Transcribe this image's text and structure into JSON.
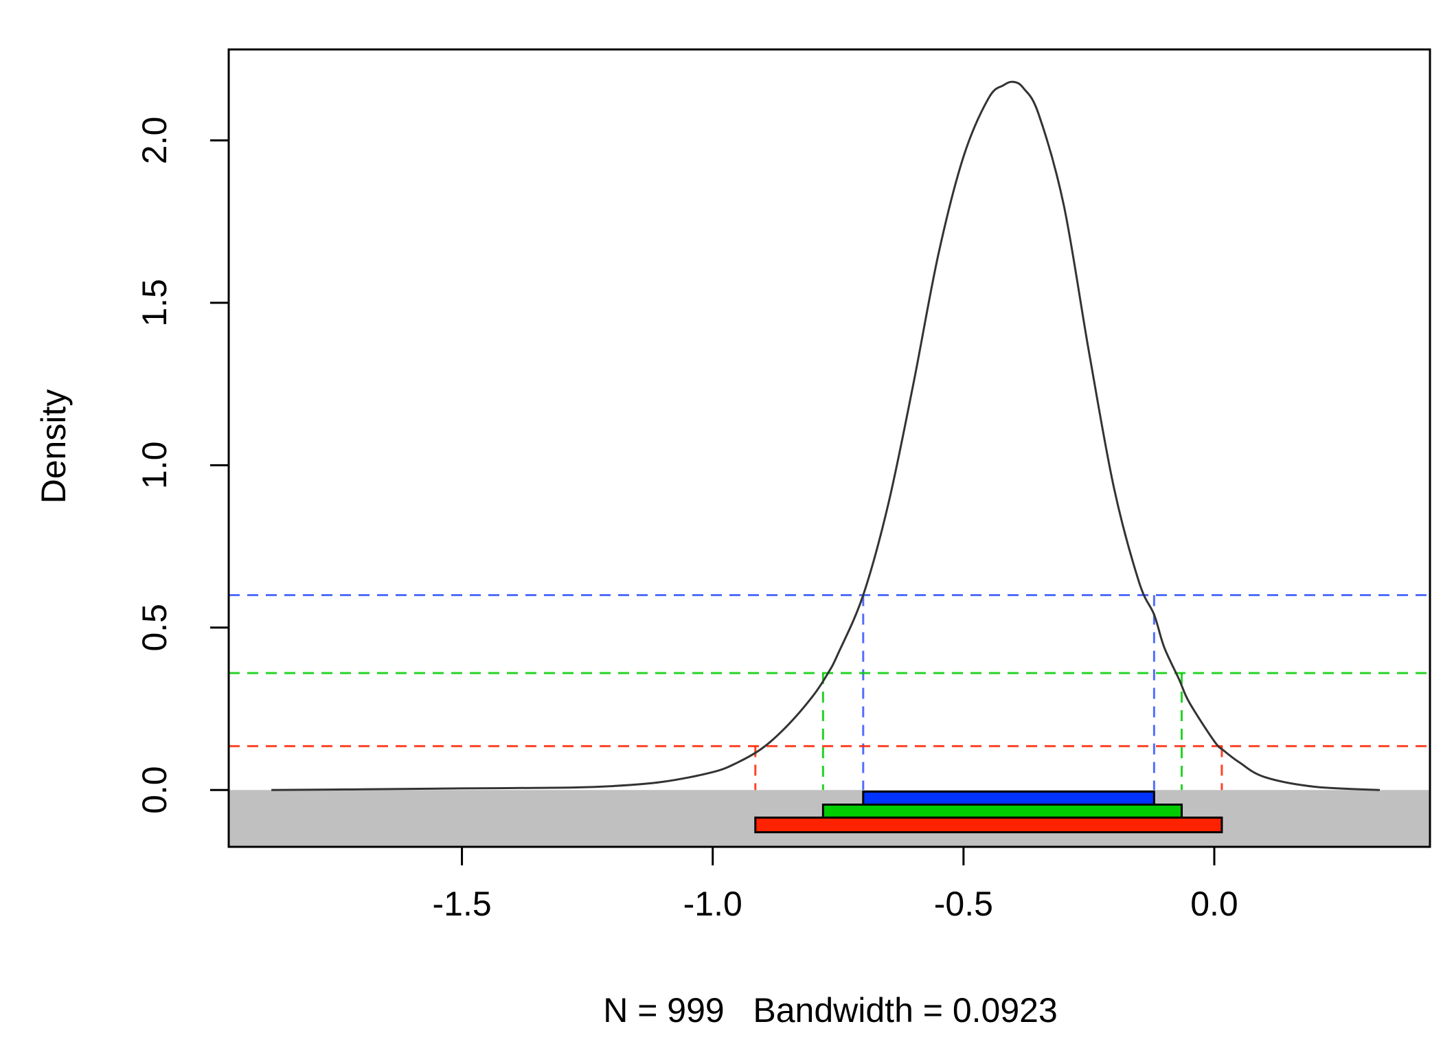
{
  "chart_data": {
    "type": "line",
    "title": "",
    "xlabel": "N = 999   Bandwidth = 0.0923",
    "ylabel": "Density",
    "xlim": [
      -1.965,
      0.43
    ],
    "ylim": [
      -0.175,
      2.28
    ],
    "x_ticks": [
      {
        "value": -1.5,
        "label": "-1.5"
      },
      {
        "value": -1.0,
        "label": "-1.0"
      },
      {
        "value": -0.5,
        "label": "-0.5"
      },
      {
        "value": 0.0,
        "label": "0.0"
      }
    ],
    "y_ticks": [
      {
        "value": 0.0,
        "label": "0.0"
      },
      {
        "value": 0.5,
        "label": "0.5"
      },
      {
        "value": 1.0,
        "label": "1.0"
      },
      {
        "value": 1.5,
        "label": "1.5"
      },
      {
        "value": 2.0,
        "label": "2.0"
      }
    ],
    "grid": false,
    "density_curve": {
      "name": "density",
      "color": "#333333",
      "x": [
        -1.88,
        -1.7,
        -1.5,
        -1.3,
        -1.2,
        -1.1,
        -1.0,
        -0.95,
        -0.9,
        -0.85,
        -0.8,
        -0.77,
        -0.75,
        -0.7,
        -0.65,
        -0.6,
        -0.55,
        -0.5,
        -0.45,
        -0.42,
        -0.4,
        -0.38,
        -0.35,
        -0.3,
        -0.25,
        -0.2,
        -0.15,
        -0.12,
        -0.1,
        -0.07,
        -0.05,
        0.0,
        0.02,
        0.05,
        0.1,
        0.2,
        0.33
      ],
      "y": [
        0.0,
        0.002,
        0.005,
        0.007,
        0.012,
        0.025,
        0.055,
        0.085,
        0.13,
        0.2,
        0.29,
        0.36,
        0.42,
        0.6,
        0.88,
        1.25,
        1.65,
        1.95,
        2.13,
        2.17,
        2.18,
        2.16,
        2.08,
        1.8,
        1.35,
        0.93,
        0.64,
        0.54,
        0.44,
        0.34,
        0.27,
        0.15,
        0.12,
        0.085,
        0.04,
        0.01,
        0.0
      ]
    },
    "thresholds": [
      {
        "name": "blue",
        "color": "#3355ff",
        "density": 0.6,
        "x_low": -0.7,
        "x_high": -0.12
      },
      {
        "name": "green",
        "color": "#00cc00",
        "density": 0.36,
        "x_low": -0.78,
        "x_high": -0.065
      },
      {
        "name": "red",
        "color": "#ff2200",
        "density": 0.135,
        "x_low": -0.915,
        "x_high": 0.015
      }
    ],
    "interval_bars": [
      {
        "name": "blue",
        "color": "#0033ff",
        "x_low": -0.7,
        "x_high": -0.12,
        "y_top": -0.005,
        "y_bottom": -0.045
      },
      {
        "name": "green",
        "color": "#00cc00",
        "x_low": -0.78,
        "x_high": -0.065,
        "y_top": -0.045,
        "y_bottom": -0.085
      },
      {
        "name": "red",
        "color": "#ff2200",
        "x_low": -0.915,
        "x_high": 0.015,
        "y_top": -0.085,
        "y_bottom": -0.13
      }
    ],
    "shaded_region": {
      "color": "#c0c0c0",
      "y_from": -0.175,
      "y_to": 0.0
    }
  }
}
